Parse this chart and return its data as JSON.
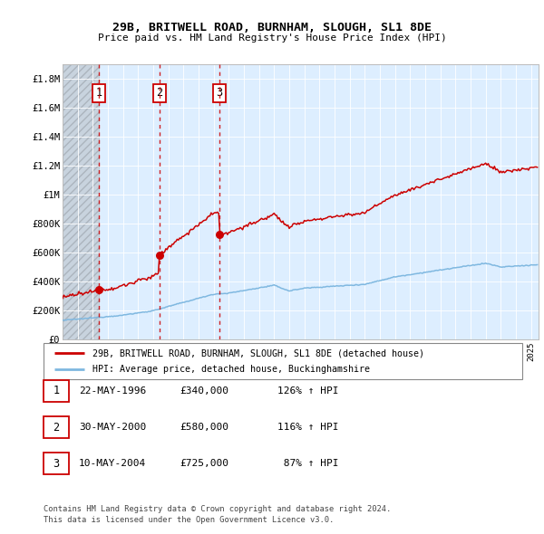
{
  "title1": "29B, BRITWELL ROAD, BURNHAM, SLOUGH, SL1 8DE",
  "title2": "Price paid vs. HM Land Registry's House Price Index (HPI)",
  "ylabel_ticks": [
    "£0",
    "£200K",
    "£400K",
    "£600K",
    "£800K",
    "£1M",
    "£1.2M",
    "£1.4M",
    "£1.6M",
    "£1.8M"
  ],
  "ytick_values": [
    0,
    200000,
    400000,
    600000,
    800000,
    1000000,
    1200000,
    1400000,
    1600000,
    1800000
  ],
  "ylim": [
    0,
    1900000
  ],
  "xlim_start": 1994.0,
  "xlim_end": 2025.5,
  "sales": [
    {
      "date": 1996.39,
      "price": 340000,
      "label": "1"
    },
    {
      "date": 2000.41,
      "price": 580000,
      "label": "2"
    },
    {
      "date": 2004.36,
      "price": 725000,
      "label": "3"
    }
  ],
  "sale_line_color": "#cc0000",
  "hpi_line_color": "#7fb8e0",
  "background_plot": "#ddeeff",
  "legend_label_red": "29B, BRITWELL ROAD, BURNHAM, SLOUGH, SL1 8DE (detached house)",
  "legend_label_blue": "HPI: Average price, detached house, Buckinghamshire",
  "table_rows": [
    {
      "num": "1",
      "date": "22-MAY-1996",
      "price": "£340,000",
      "hpi": "126% ↑ HPI"
    },
    {
      "num": "2",
      "date": "30-MAY-2000",
      "price": "£580,000",
      "hpi": "116% ↑ HPI"
    },
    {
      "num": "3",
      "date": "10-MAY-2004",
      "price": "£725,000",
      "hpi": " 87% ↑ HPI"
    }
  ],
  "footnote1": "Contains HM Land Registry data © Crown copyright and database right 2024.",
  "footnote2": "This data is licensed under the Open Government Licence v3.0."
}
